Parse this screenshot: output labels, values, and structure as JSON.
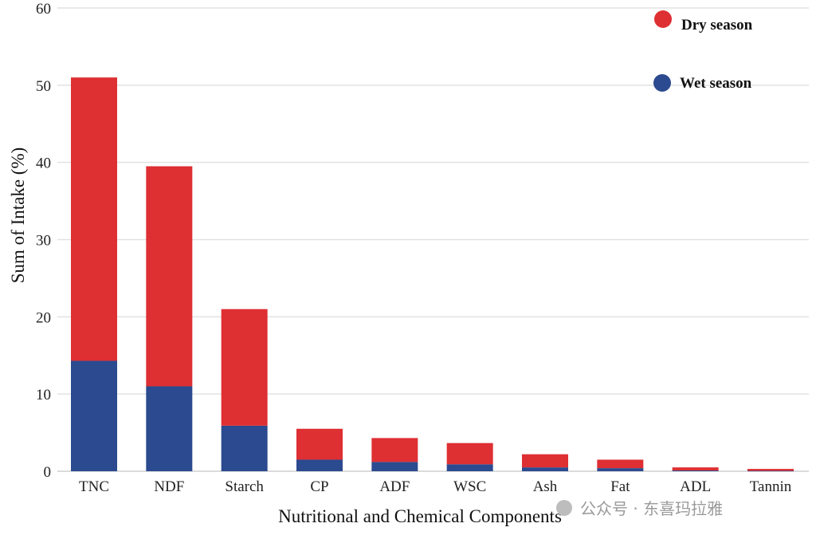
{
  "chart_data": {
    "type": "bar",
    "stacked": true,
    "title": "",
    "xlabel": "Nutritional and Chemical Components",
    "ylabel": "Sum of Intake (%)",
    "ylim": [
      0,
      60
    ],
    "yticks": [
      0,
      10,
      20,
      30,
      40,
      50,
      60
    ],
    "grid": true,
    "legend_position": "top-right",
    "categories": [
      "TNC",
      "NDF",
      "Starch",
      "CP",
      "ADF",
      "WSC",
      "Ash",
      "Fat",
      "ADL",
      "Tannin"
    ],
    "series": [
      {
        "name": "Wet season",
        "color": "#2b4a8f",
        "values": [
          14.3,
          11.0,
          5.9,
          1.5,
          1.2,
          0.9,
          0.5,
          0.4,
          0.1,
          0.05
        ]
      },
      {
        "name": "Dry season",
        "color": "#de2f33",
        "values": [
          36.7,
          28.5,
          15.1,
          4.0,
          3.1,
          2.75,
          1.7,
          1.1,
          0.4,
          0.25
        ]
      }
    ],
    "legend": [
      {
        "label": "Dry season",
        "color": "#de2f33"
      },
      {
        "label": "Wet season",
        "color": "#2b4a8f"
      }
    ]
  },
  "watermark": "公众号 · 东喜玛拉雅"
}
